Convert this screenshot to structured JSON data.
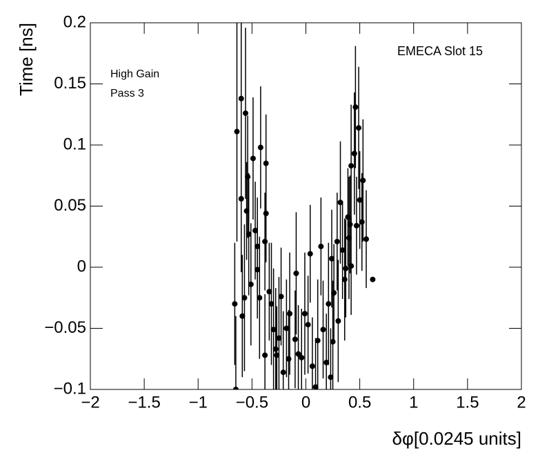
{
  "chart_data": {
    "type": "scatter",
    "title": "EMECA Slot 15",
    "annotations": [
      "High Gain",
      "Pass 3"
    ],
    "x_label": "δφ[0.0245 units]",
    "y_label": "Time [ns]",
    "color": "#000000",
    "xlim": [
      -2,
      2
    ],
    "ylim": [
      -0.1,
      0.2
    ],
    "xticks": [
      {
        "value": -2,
        "label": "−2"
      },
      {
        "value": -1.5,
        "label": "−1.5"
      },
      {
        "value": -1,
        "label": "−1"
      },
      {
        "value": -0.5,
        "label": "−0.5"
      },
      0,
      0.5,
      1,
      1.5,
      2
    ],
    "yticks": [
      {
        "value": -0.1,
        "label": "−0.1"
      },
      {
        "value": -0.05,
        "label": "−0.05"
      },
      0,
      0.05,
      0.1,
      0.15,
      0.2
    ],
    "x": [
      -0.64,
      -0.66,
      -0.65,
      -0.6,
      -0.56,
      -0.6,
      -0.59,
      -0.57,
      -0.54,
      -0.55,
      -0.53,
      -0.49,
      -0.47,
      -0.45,
      -0.45,
      -0.51,
      -0.42,
      -0.37,
      -0.43,
      -0.38,
      -0.37,
      -0.38,
      -0.34,
      -0.32,
      -0.3,
      -0.28,
      -0.27,
      -0.25,
      -0.23,
      -0.21,
      -0.18,
      -0.16,
      -0.15,
      -0.1,
      -0.09,
      -0.07,
      -0.04,
      -0.01,
      0.02,
      0.04,
      0.06,
      0.09,
      0.11,
      0.14,
      0.16,
      0.19,
      0.21,
      0.23,
      0.24,
      0.25,
      0.26,
      0.29,
      0.3,
      0.32,
      0.34,
      0.36,
      0.37,
      0.39,
      0.4,
      0.41,
      0.42,
      0.42,
      0.45,
      0.46,
      0.47,
      0.49,
      0.5,
      0.52,
      0.53,
      0.56,
      0.62
    ],
    "y": [
      0.111,
      -0.03,
      -0.1,
      0.138,
      0.126,
      0.056,
      -0.04,
      -0.025,
      0.074,
      0.046,
      0.027,
      0.089,
      0.03,
      0.017,
      -0.002,
      -0.014,
      0.098,
      0.085,
      -0.025,
      0.021,
      0.044,
      -0.072,
      -0.02,
      -0.03,
      -0.051,
      -0.067,
      -0.072,
      -0.058,
      -0.024,
      -0.086,
      -0.05,
      -0.075,
      -0.038,
      -0.059,
      -0.005,
      -0.071,
      -0.074,
      -0.038,
      -0.047,
      0.011,
      -0.081,
      -0.098,
      -0.06,
      0.017,
      -0.051,
      -0.078,
      -0.03,
      -0.09,
      0.007,
      -0.061,
      -0.021,
      0.021,
      -0.044,
      0.053,
      0.014,
      -0.01,
      -0.001,
      0.041,
      0.024,
      0.035,
      0.001,
      0.083,
      0.093,
      0.131,
      0.034,
      0.114,
      0.055,
      0.037,
      0.071,
      0.023,
      -0.01
    ],
    "errors": [
      0.09,
      0.05,
      0.06,
      0.08,
      0.07,
      0.06,
      0.05,
      0.06,
      0.05,
      0.04,
      0.05,
      0.05,
      0.04,
      0.04,
      0.04,
      0.05,
      0.05,
      0.04,
      0.05,
      0.04,
      0.04,
      0.05,
      0.04,
      0.05,
      0.05,
      0.05,
      0.04,
      0.05,
      0.04,
      0.05,
      0.04,
      0.04,
      0.05,
      0.04,
      0.05,
      0.04,
      0.04,
      0.05,
      0.04,
      0.04,
      0.04,
      0.04,
      0.05,
      0.04,
      0.04,
      0.04,
      0.05,
      0.04,
      0.04,
      0.05,
      0.04,
      0.04,
      0.05,
      0.05,
      0.04,
      0.05,
      0.04,
      0.04,
      0.05,
      0.04,
      0.04,
      0.05,
      0.05,
      0.05,
      0.04,
      0.05,
      0.04,
      0.04,
      0.05,
      0.04,
      0
    ]
  }
}
